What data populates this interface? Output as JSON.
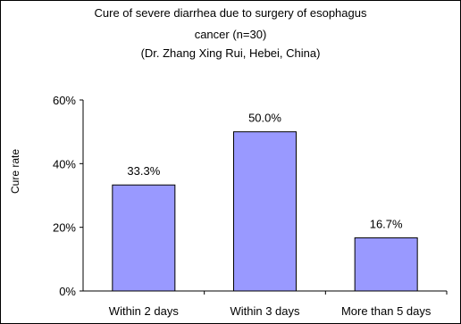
{
  "chart_data": {
    "type": "bar",
    "title_lines": [
      "Cure of severe diarrhea due to surgery of esophagus",
      "cancer (n=30)",
      "(Dr. Zhang Xing Rui, Hebei, China)"
    ],
    "ylabel": "Cure rate",
    "xlabel": "",
    "categories": [
      "Within 2 days",
      "Within 3 days",
      "More than 5 days"
    ],
    "values": [
      33.3,
      50.0,
      16.7
    ],
    "value_labels": [
      "33.3%",
      "50.0%",
      "16.7%"
    ],
    "yticks": [
      0,
      20,
      40,
      60
    ],
    "ytick_labels": [
      "0%",
      "20%",
      "40%",
      "60%"
    ],
    "ylim": [
      0,
      60
    ],
    "grid": false,
    "bar_color": "#9999ff"
  }
}
